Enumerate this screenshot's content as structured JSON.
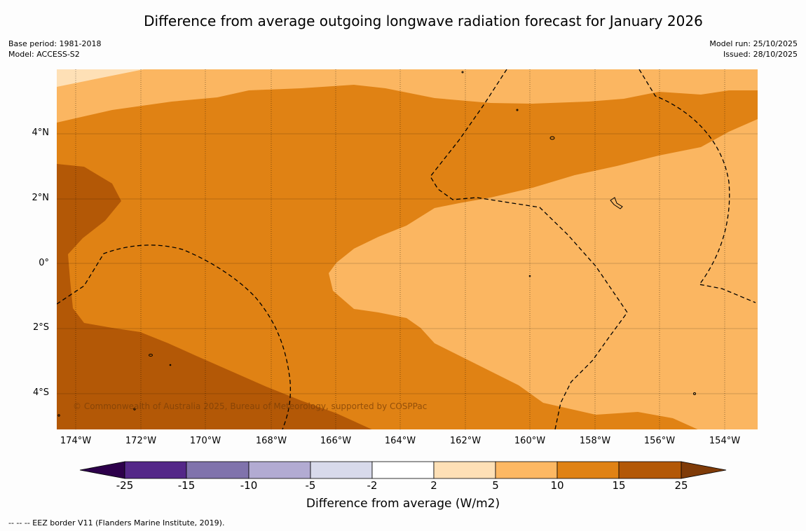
{
  "title": "Difference from average outgoing longwave radiation forecast for January 2026",
  "meta_left": {
    "base_period": "Base period: 1981-2018",
    "model": "Model: ACCESS-S2"
  },
  "meta_right": {
    "model_run": "Model run: 25/10/2025",
    "issued": "Issued: 28/10/2025"
  },
  "map": {
    "copyright": "© Commonwealth of Australia 2025, Bureau of Meteorology, supported by COSPPac",
    "lat_labels": [
      "4°N",
      "2°N",
      "0°",
      "2°S",
      "4°S"
    ],
    "lon_labels": [
      "174°W",
      "172°W",
      "170°W",
      "168°W",
      "166°W",
      "164°W",
      "162°W",
      "160°W",
      "158°W",
      "156°W",
      "154°W"
    ],
    "colors": {
      "ocean_5_10": "#fbb661",
      "band_10_15": "#e08214",
      "band_15_25": "#b35806",
      "band_2_5": "#fee0b6"
    }
  },
  "colorbar": {
    "title": "Difference from average (W/m2)",
    "tick_labels": [
      "-25",
      "-15",
      "-10",
      "-5",
      "-2",
      "2",
      "5",
      "10",
      "15",
      "25"
    ],
    "colors": [
      "#2d004b",
      "#542788",
      "#8073ac",
      "#b2abd2",
      "#d8daeb",
      "#ffffff",
      "#fee0b6",
      "#fdb863",
      "#e08214",
      "#b35806",
      "#7f3b08"
    ]
  },
  "footer": "--  --  -- EEZ border V11 (Flanders Marine Institute, 2019)."
}
